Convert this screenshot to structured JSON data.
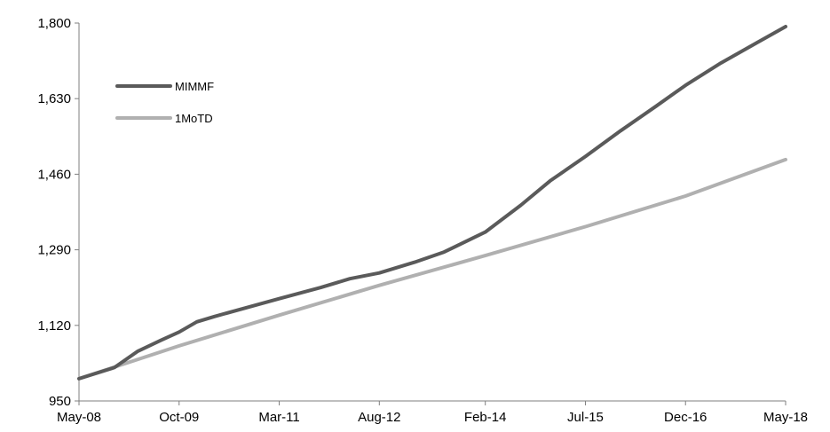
{
  "chart_data": {
    "type": "line",
    "title": "",
    "xlabel": "",
    "ylabel": "",
    "x_ticks": [
      "May-08",
      "Oct-09",
      "Mar-11",
      "Aug-12",
      "Feb-14",
      "Jul-15",
      "Dec-16",
      "May-18"
    ],
    "y_ticks": [
      "950",
      "1,120",
      "1,290",
      "1,460",
      "1,630",
      "1,800"
    ],
    "ylim": [
      950,
      1800
    ],
    "xlim": [
      "May-08",
      "May-18"
    ],
    "grid": false,
    "legend_position": "top-left",
    "series": [
      {
        "name": "MIMMF",
        "color": "#5a5a5a",
        "points": [
          [
            "May-08",
            1000
          ],
          [
            "Nov-08",
            1025
          ],
          [
            "Mar-09",
            1062
          ],
          [
            "Jul-09",
            1087
          ],
          [
            "Oct-09",
            1105
          ],
          [
            "Jan-10",
            1128
          ],
          [
            "Apr-10",
            1140
          ],
          [
            "Oct-10",
            1162
          ],
          [
            "Mar-11",
            1180
          ],
          [
            "Oct-11",
            1205
          ],
          [
            "Mar-12",
            1225
          ],
          [
            "Aug-12",
            1238
          ],
          [
            "Feb-13",
            1262
          ],
          [
            "Jul-13",
            1285
          ],
          [
            "Feb-14",
            1330
          ],
          [
            "Aug-14",
            1390
          ],
          [
            "Jan-15",
            1445
          ],
          [
            "Jul-15",
            1500
          ],
          [
            "Jan-16",
            1558
          ],
          [
            "Jul-16",
            1613
          ],
          [
            "Dec-16",
            1660
          ],
          [
            "Jun-17",
            1710
          ],
          [
            "Dec-17",
            1755
          ],
          [
            "May-18",
            1792
          ]
        ]
      },
      {
        "name": "1MoTD",
        "color": "#b0b0b0",
        "points": [
          [
            "May-08",
            1000
          ],
          [
            "Oct-09",
            1074
          ],
          [
            "Mar-11",
            1143
          ],
          [
            "Aug-12",
            1210
          ],
          [
            "Feb-14",
            1277
          ],
          [
            "Jul-15",
            1342
          ],
          [
            "Dec-16",
            1411
          ],
          [
            "May-18",
            1493
          ]
        ]
      }
    ]
  }
}
